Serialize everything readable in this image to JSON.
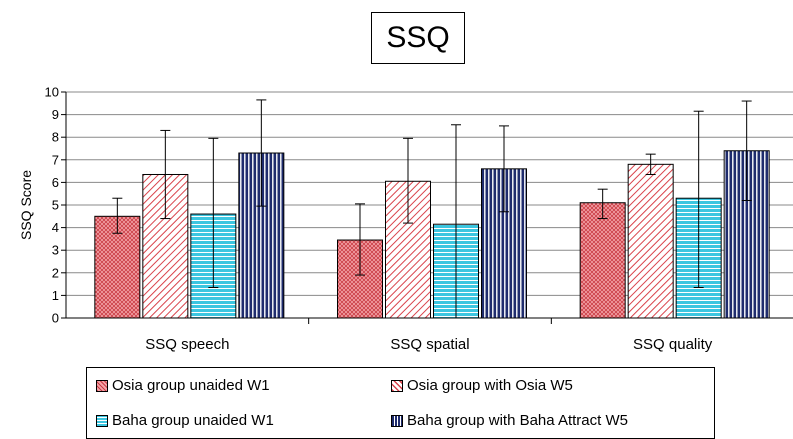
{
  "chart_data": {
    "type": "bar",
    "title": "SSQ",
    "xlabel": "",
    "ylabel": "SSQ Score",
    "ylim": [
      0,
      10
    ],
    "yticks": [
      "0",
      "1",
      "2",
      "3",
      "4",
      "5",
      "6",
      "7",
      "8",
      "9",
      "10"
    ],
    "grid": true,
    "legend_position": "bottom",
    "categories": [
      "SSQ speech",
      "SSQ spatial",
      "SSQ quality"
    ],
    "series": [
      {
        "name": "Osia group unaided W1",
        "values": [
          4.5,
          3.45,
          5.1
        ],
        "error_low": [
          3.75,
          1.9,
          4.4
        ],
        "error_high": [
          5.3,
          5.05,
          5.7
        ],
        "color": "#e8787e",
        "pattern": "crosshatch"
      },
      {
        "name": "Osia group with Osia W5",
        "values": [
          6.35,
          6.05,
          6.8
        ],
        "error_low": [
          4.4,
          4.2,
          6.35
        ],
        "error_high": [
          8.3,
          7.95,
          7.25
        ],
        "color": "#d9434b",
        "pattern": "diagonal"
      },
      {
        "name": "Baha group unaided W1",
        "values": [
          4.6,
          4.15,
          5.3
        ],
        "error_low": [
          1.35,
          0,
          1.35
        ],
        "error_high": [
          7.95,
          8.55,
          9.15
        ],
        "color": "#3cc6e0",
        "pattern": "horizontal"
      },
      {
        "name": "Baha group with Baha Attract W5",
        "values": [
          7.3,
          6.6,
          7.4
        ],
        "error_low": [
          4.95,
          4.7,
          5.2
        ],
        "error_high": [
          9.65,
          8.5,
          9.6
        ],
        "color": "#1f2c6e",
        "pattern": "vertical"
      }
    ]
  }
}
